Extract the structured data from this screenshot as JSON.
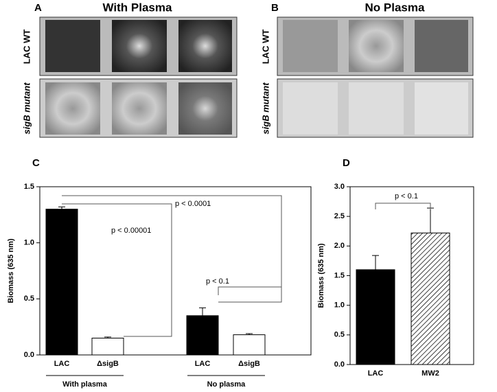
{
  "image_panels": [
    {
      "label": "A",
      "title": "With Plasma",
      "rows": [
        "LAC WT",
        "sigB mutant"
      ]
    },
    {
      "label": "B",
      "title": "No Plasma",
      "rows": [
        "LAC WT",
        "sigB mutant"
      ]
    }
  ],
  "chart_data": [
    {
      "type": "bar",
      "panel": "C",
      "ylabel": "Biomass (635 nm)",
      "categories": [
        "LAC",
        "ΔsigB",
        "LAC",
        "ΔsigB"
      ],
      "values": [
        1.3,
        0.15,
        0.35,
        0.18
      ],
      "errors": [
        0.02,
        0.01,
        0.07,
        0.01
      ],
      "colors": [
        "#000000",
        "#ffffff",
        "#000000",
        "#ffffff"
      ],
      "hatch": [
        false,
        false,
        false,
        false
      ],
      "groups": [
        "With plasma",
        "No plasma"
      ],
      "annotations": [
        "p < 0.00001",
        "p < 0.0001",
        "p < 0.1"
      ],
      "ylim": [
        0,
        1.5
      ],
      "yticks": [
        {
          "value": 0,
          "label": "0.0"
        },
        {
          "value": 0.5,
          "label": "0.5"
        },
        {
          "value": 1,
          "label": "1.0"
        },
        {
          "value": 1.5,
          "label": "1.5"
        }
      ]
    },
    {
      "type": "bar",
      "panel": "D",
      "ylabel": "Biomass (635 nm)",
      "categories": [
        "LAC",
        "MW2"
      ],
      "values": [
        1.6,
        2.22
      ],
      "errors": [
        0.24,
        0.42
      ],
      "colors": [
        "#000000",
        "#ffffff"
      ],
      "hatch": [
        false,
        true
      ],
      "annotations": [
        "p < 0.1"
      ],
      "ylim": [
        0,
        3
      ],
      "yticks": [
        {
          "value": 0,
          "label": "0.0"
        },
        {
          "value": 0.5,
          "label": "0.5"
        },
        {
          "value": 1,
          "label": "1.0"
        },
        {
          "value": 1.5,
          "label": "1.5"
        },
        {
          "value": 2,
          "label": "2.0"
        },
        {
          "value": 2.5,
          "label": "2.5"
        },
        {
          "value": 3,
          "label": "3.0"
        }
      ]
    }
  ]
}
